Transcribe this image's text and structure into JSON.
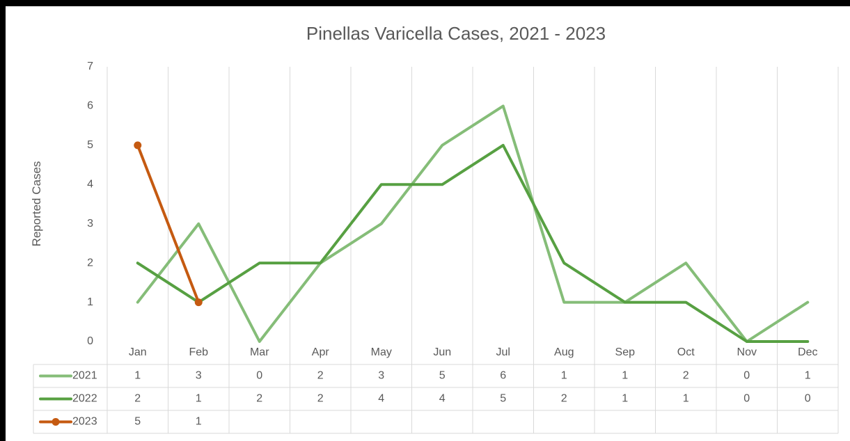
{
  "chart_data": {
    "type": "line",
    "title": "Pinellas Varicella Cases, 2021 - 2023",
    "xlabel": "",
    "ylabel": "Reported Cases",
    "ylim": [
      0,
      7
    ],
    "yticks": [
      0,
      1,
      2,
      3,
      4,
      5,
      6,
      7
    ],
    "grid": "vertical",
    "legend": "data-table-left",
    "categories": [
      "Jan",
      "Feb",
      "Mar",
      "Apr",
      "May",
      "Jun",
      "Jul",
      "Aug",
      "Sep",
      "Oct",
      "Nov",
      "Dec"
    ],
    "series": [
      {
        "name": "2021",
        "values": [
          1,
          3,
          0,
          2,
          3,
          5,
          6,
          1,
          1,
          2,
          0,
          1
        ],
        "color": "#85bd78",
        "markers": false
      },
      {
        "name": "2022",
        "values": [
          2,
          1,
          2,
          2,
          4,
          4,
          5,
          2,
          1,
          1,
          0,
          0
        ],
        "color": "#57a042",
        "markers": false
      },
      {
        "name": "2023",
        "values": [
          5,
          1,
          null,
          null,
          null,
          null,
          null,
          null,
          null,
          null,
          null,
          null
        ],
        "color": "#c55a11",
        "markers": true
      }
    ]
  }
}
